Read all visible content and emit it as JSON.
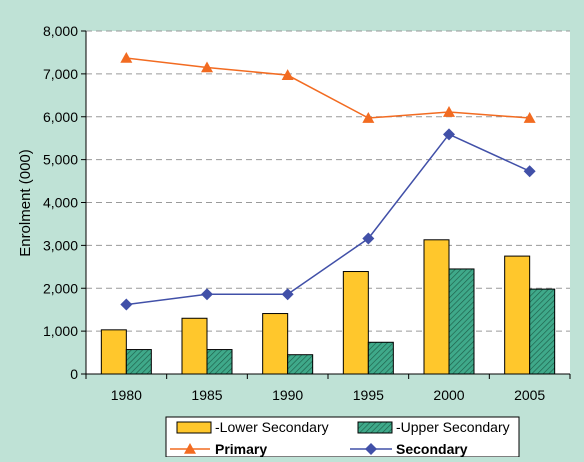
{
  "chart_data": {
    "type": "bar+line",
    "categories": [
      "1980",
      "1985",
      "1990",
      "1995",
      "2000",
      "2005"
    ],
    "ylabel": "Enrolment (000)",
    "xlabel": "",
    "ylim": [
      0,
      8000
    ],
    "yticks": [
      0,
      1000,
      2000,
      3000,
      4000,
      5000,
      6000,
      7000,
      8000
    ],
    "ytick_labels": [
      "0",
      "1,000",
      "2,000",
      "3,000",
      "4,000",
      "5,000",
      "6,000",
      "7,000",
      "8,000"
    ],
    "grid": "horizontal dashed",
    "legend_placement": "bottom",
    "bar_series": [
      {
        "name": "-Lower Secondary",
        "values": [
          1030,
          1300,
          1410,
          2390,
          3130,
          2750
        ],
        "color": "#ffc72c"
      },
      {
        "name": "-Upper Secondary",
        "values": [
          570,
          570,
          450,
          740,
          2450,
          1980
        ],
        "color": "#3fa98a"
      }
    ],
    "line_series": [
      {
        "name": "Primary",
        "values": [
          7370,
          7150,
          6970,
          5970,
          6110,
          5970
        ],
        "color": "#f26b21",
        "marker": "triangle"
      },
      {
        "name": "Secondary",
        "values": [
          1620,
          1860,
          1860,
          3160,
          5590,
          4730
        ],
        "color": "#4150a8",
        "marker": "diamond"
      }
    ]
  }
}
